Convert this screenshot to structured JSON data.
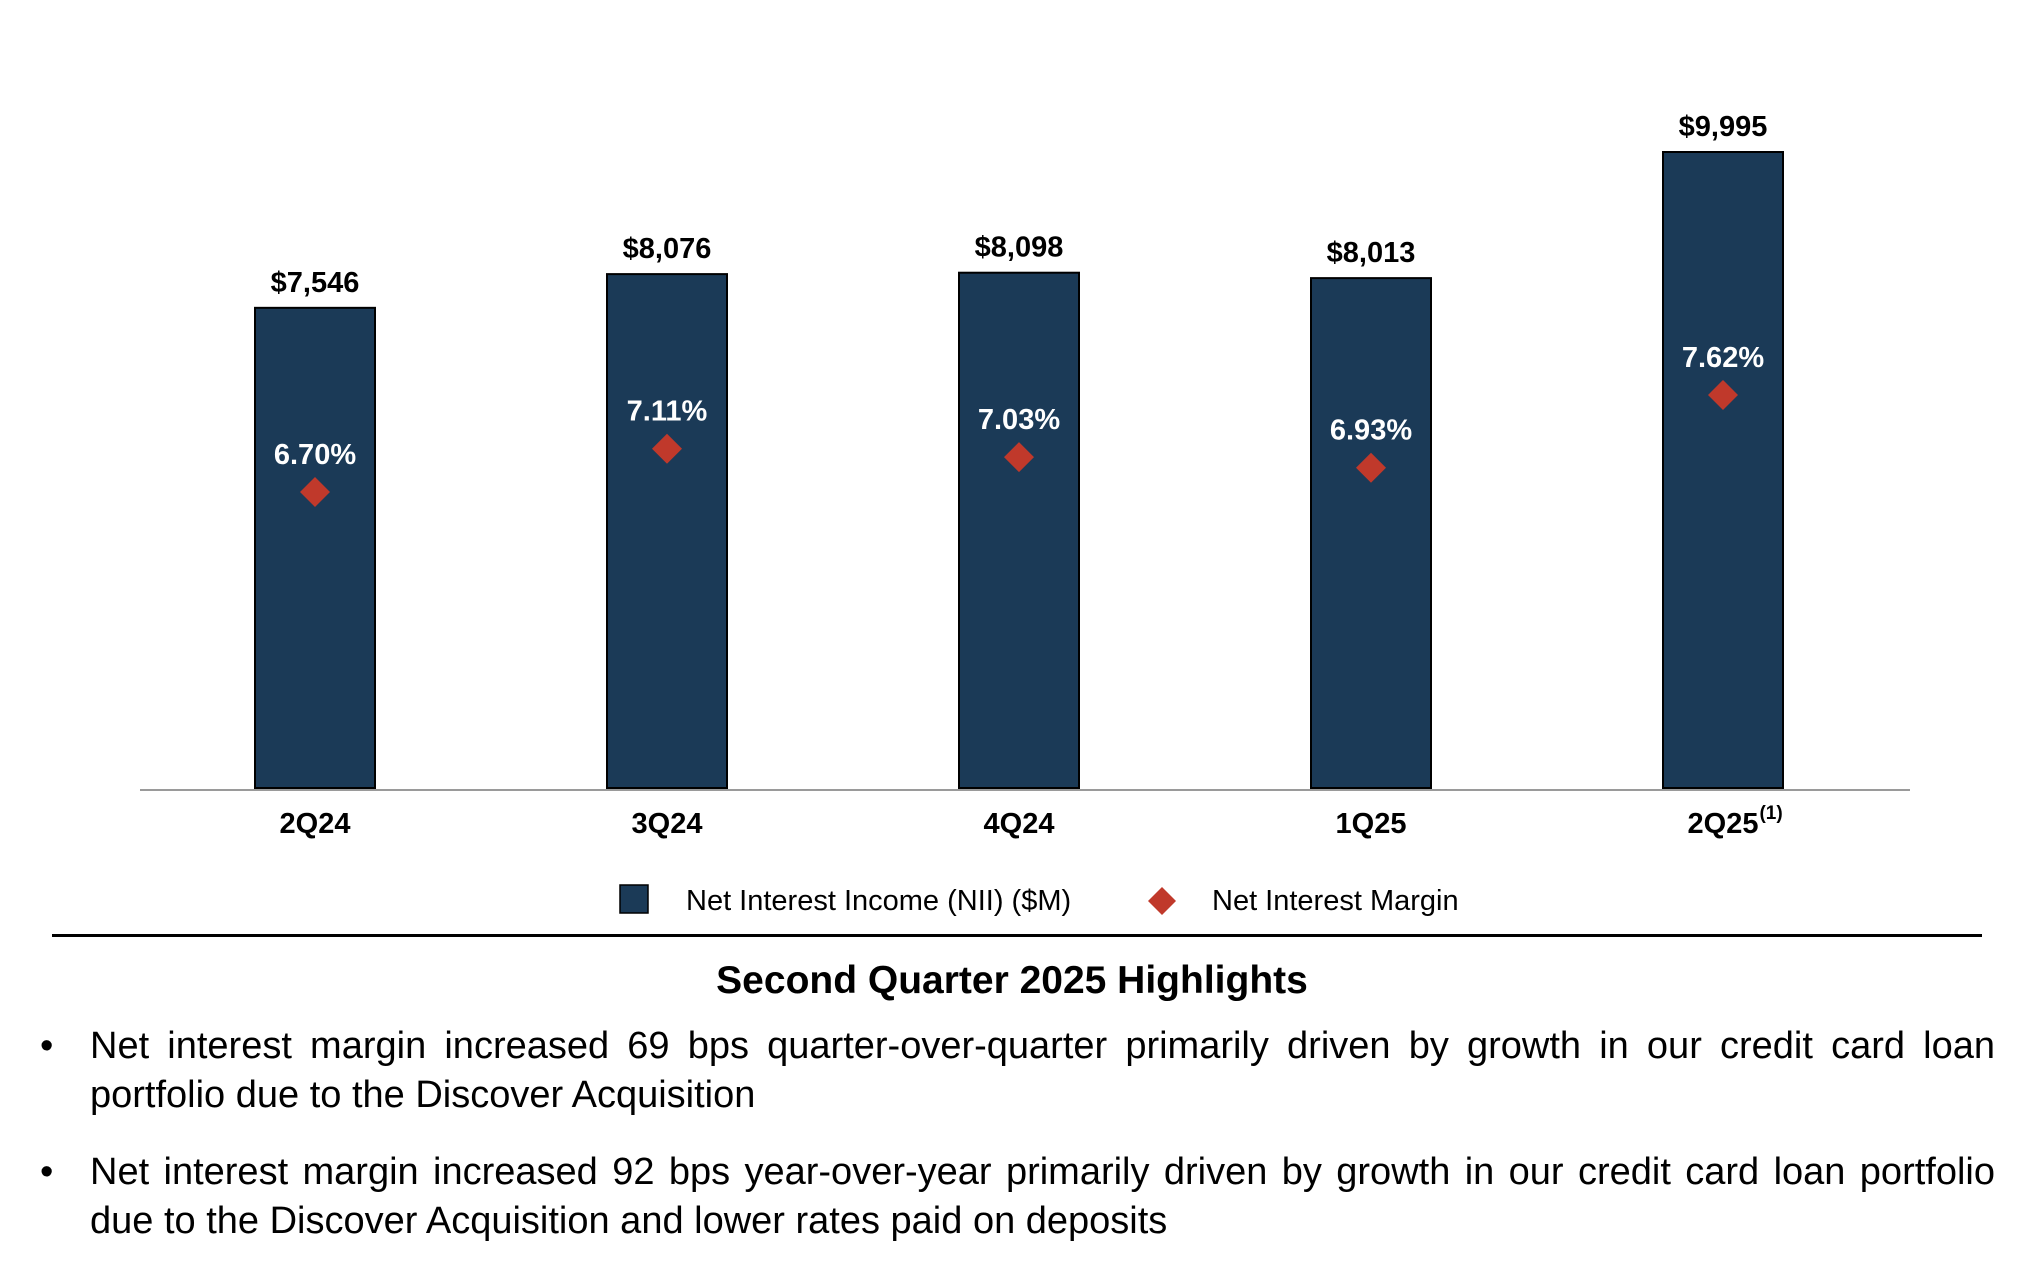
{
  "chart_data": {
    "type": "bar",
    "categories": [
      "2Q24",
      "3Q24",
      "4Q24",
      "1Q25",
      "2Q25"
    ],
    "category_footnotes": [
      "",
      "",
      "",
      "",
      "(1)"
    ],
    "series": [
      {
        "name": "Net Interest Income (NII) ($M)",
        "type": "bar",
        "values": [
          7546,
          8076,
          8098,
          8013,
          9995
        ],
        "labels": [
          "$7,546",
          "$8,076",
          "$8,098",
          "$8,013",
          "$9,995"
        ],
        "color": "#1b3a57"
      },
      {
        "name": "Net Interest Margin",
        "type": "scatter",
        "marker": "diamond",
        "values": [
          6.7,
          7.11,
          7.03,
          6.93,
          7.62
        ],
        "labels": [
          "6.70%",
          "7.11%",
          "7.03%",
          "6.93%",
          "7.62%"
        ],
        "color": "#c0392b"
      }
    ],
    "title": "",
    "xlabel": "",
    "ylabel": "",
    "grid": false,
    "legend_position": "bottom"
  },
  "highlights": {
    "title": "Second Quarter 2025 Highlights",
    "bullet_symbol": "•",
    "bullets": [
      "Net interest margin increased 69 bps quarter-over-quarter primarily driven by growth in our credit card loan portfolio due to the Discover Acquisition",
      "Net interest margin increased 92 bps year-over-year primarily driven by growth in our credit card loan portfolio due to the Discover Acquisition and lower rates paid on deposits"
    ]
  },
  "colors": {
    "bar": "#1b3a57",
    "marker": "#c0392b",
    "axis": "#9a9a9a",
    "divider": "#000000"
  }
}
